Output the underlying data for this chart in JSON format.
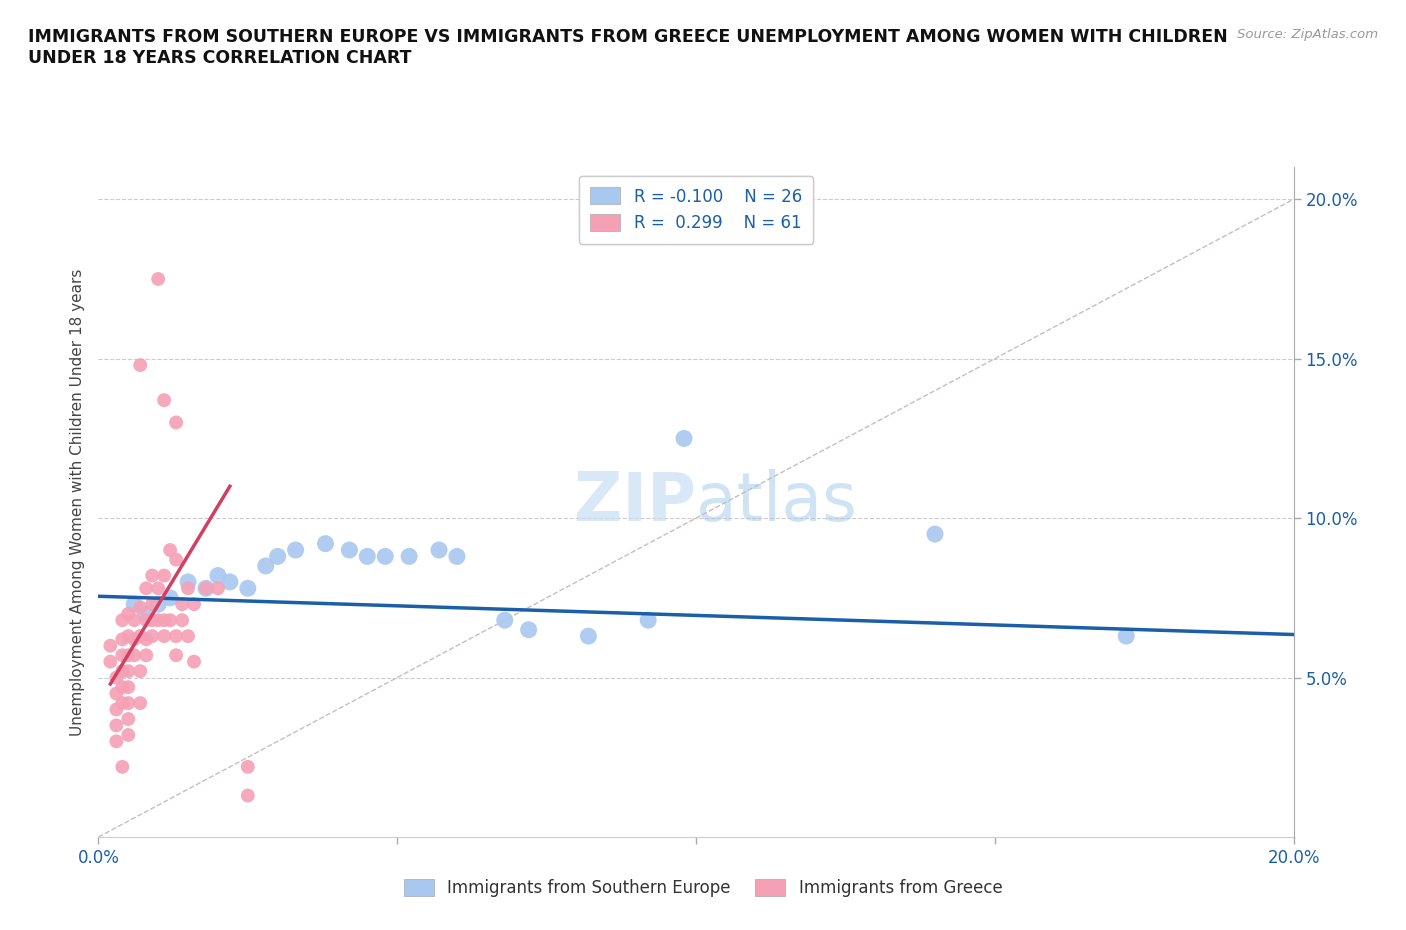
{
  "title": "IMMIGRANTS FROM SOUTHERN EUROPE VS IMMIGRANTS FROM GREECE UNEMPLOYMENT AMONG WOMEN WITH CHILDREN\nUNDER 18 YEARS CORRELATION CHART",
  "source_text": "Source: ZipAtlas.com",
  "ylabel": "Unemployment Among Women with Children Under 18 years",
  "xlim": [
    0.0,
    0.2
  ],
  "ylim": [
    0.0,
    0.21
  ],
  "watermark": "ZIPatlas",
  "legend_r_blue": "-0.100",
  "legend_n_blue": "26",
  "legend_r_pink": "0.299",
  "legend_n_pink": "61",
  "blue_color": "#a8c8f0",
  "pink_color": "#f5a0b5",
  "blue_line_color": "#1a5fa8",
  "pink_line_color": "#d04060",
  "diagonal_color": "#ccbbbb",
  "blue_trend_x": [
    0.0,
    0.2
  ],
  "blue_trend_y": [
    0.0755,
    0.0635
  ],
  "pink_trend_x": [
    0.002,
    0.022
  ],
  "pink_trend_y": [
    0.048,
    0.11
  ],
  "blue_scatter": [
    [
      0.006,
      0.073
    ],
    [
      0.008,
      0.07
    ],
    [
      0.01,
      0.073
    ],
    [
      0.012,
      0.075
    ],
    [
      0.015,
      0.08
    ],
    [
      0.018,
      0.078
    ],
    [
      0.02,
      0.082
    ],
    [
      0.022,
      0.08
    ],
    [
      0.025,
      0.078
    ],
    [
      0.028,
      0.085
    ],
    [
      0.03,
      0.088
    ],
    [
      0.033,
      0.09
    ],
    [
      0.038,
      0.092
    ],
    [
      0.042,
      0.09
    ],
    [
      0.045,
      0.088
    ],
    [
      0.048,
      0.088
    ],
    [
      0.052,
      0.088
    ],
    [
      0.057,
      0.09
    ],
    [
      0.06,
      0.088
    ],
    [
      0.068,
      0.068
    ],
    [
      0.072,
      0.065
    ],
    [
      0.082,
      0.063
    ],
    [
      0.092,
      0.068
    ],
    [
      0.098,
      0.125
    ],
    [
      0.14,
      0.095
    ],
    [
      0.172,
      0.063
    ]
  ],
  "pink_scatter": [
    [
      0.002,
      0.06
    ],
    [
      0.002,
      0.055
    ],
    [
      0.003,
      0.05
    ],
    [
      0.003,
      0.045
    ],
    [
      0.003,
      0.04
    ],
    [
      0.003,
      0.035
    ],
    [
      0.003,
      0.03
    ],
    [
      0.004,
      0.068
    ],
    [
      0.004,
      0.062
    ],
    [
      0.004,
      0.057
    ],
    [
      0.004,
      0.052
    ],
    [
      0.004,
      0.047
    ],
    [
      0.004,
      0.042
    ],
    [
      0.004,
      0.022
    ],
    [
      0.005,
      0.07
    ],
    [
      0.005,
      0.063
    ],
    [
      0.005,
      0.057
    ],
    [
      0.005,
      0.052
    ],
    [
      0.005,
      0.047
    ],
    [
      0.005,
      0.042
    ],
    [
      0.005,
      0.037
    ],
    [
      0.005,
      0.032
    ],
    [
      0.006,
      0.068
    ],
    [
      0.006,
      0.062
    ],
    [
      0.006,
      0.057
    ],
    [
      0.007,
      0.148
    ],
    [
      0.007,
      0.072
    ],
    [
      0.007,
      0.063
    ],
    [
      0.007,
      0.052
    ],
    [
      0.007,
      0.042
    ],
    [
      0.008,
      0.078
    ],
    [
      0.008,
      0.068
    ],
    [
      0.008,
      0.062
    ],
    [
      0.008,
      0.057
    ],
    [
      0.009,
      0.082
    ],
    [
      0.009,
      0.073
    ],
    [
      0.009,
      0.068
    ],
    [
      0.009,
      0.063
    ],
    [
      0.01,
      0.078
    ],
    [
      0.01,
      0.068
    ],
    [
      0.01,
      0.175
    ],
    [
      0.011,
      0.137
    ],
    [
      0.011,
      0.082
    ],
    [
      0.011,
      0.068
    ],
    [
      0.011,
      0.063
    ],
    [
      0.012,
      0.09
    ],
    [
      0.012,
      0.068
    ],
    [
      0.013,
      0.13
    ],
    [
      0.013,
      0.087
    ],
    [
      0.013,
      0.063
    ],
    [
      0.013,
      0.057
    ],
    [
      0.014,
      0.073
    ],
    [
      0.014,
      0.068
    ],
    [
      0.015,
      0.078
    ],
    [
      0.015,
      0.063
    ],
    [
      0.016,
      0.073
    ],
    [
      0.016,
      0.055
    ],
    [
      0.018,
      0.078
    ],
    [
      0.02,
      0.078
    ],
    [
      0.025,
      0.022
    ],
    [
      0.025,
      0.013
    ]
  ]
}
